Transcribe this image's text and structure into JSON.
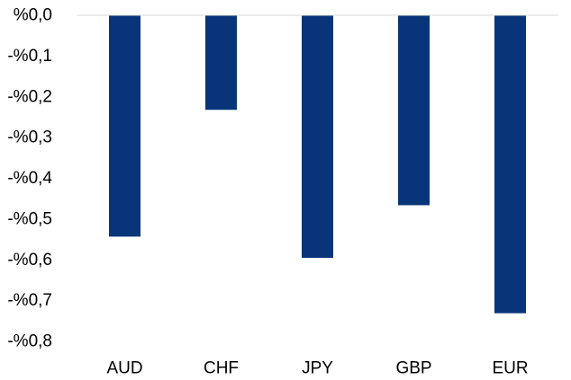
{
  "chart_data": {
    "type": "bar",
    "categories": [
      "AUD",
      "CHF",
      "JPY",
      "GBP",
      "EUR"
    ],
    "values": [
      -0.543,
      -0.232,
      -0.595,
      -0.466,
      -0.731
    ],
    "ylim": [
      -0.8,
      0.0
    ],
    "y_ticks": [
      0.0,
      -0.1,
      -0.2,
      -0.3,
      -0.4,
      -0.5,
      -0.6,
      -0.7,
      -0.8
    ],
    "y_tick_labels": [
      "%0,0",
      "-%0,1",
      "-%0,2",
      "-%0,3",
      "-%0,4",
      "-%0,5",
      "-%0,6",
      "-%0,7",
      "-%0,8"
    ],
    "bar_color": "#08357a",
    "baseline_color": "#d9d9d9",
    "grid": false,
    "legend": false
  }
}
